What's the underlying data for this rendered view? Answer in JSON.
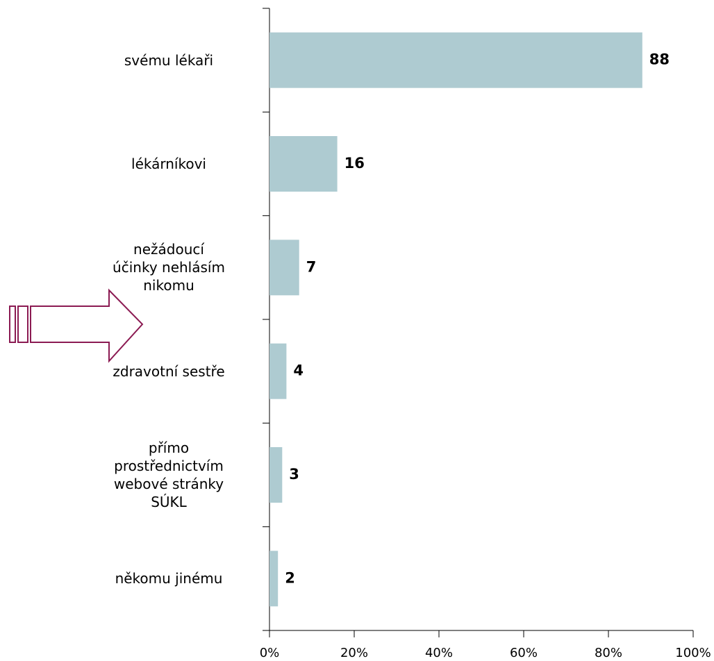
{
  "chart_data": {
    "type": "bar",
    "orientation": "horizontal",
    "categories": [
      "svému lékaři",
      "lékárníkovi",
      "nežádoucí\núčinky nehlásím\nnikomu",
      "zdravotní sestře",
      "přímo\nprostřednictvím\nwebové stránky\nSÚKL",
      "někomu jinému"
    ],
    "values": [
      88,
      16,
      7,
      4,
      3,
      2
    ],
    "color": "#aecbd1",
    "xlim": [
      0,
      100
    ],
    "xticks": [
      {
        "value": 0,
        "label": "0%"
      },
      {
        "value": 20,
        "label": "20%"
      },
      {
        "value": 40,
        "label": "40%"
      },
      {
        "value": 60,
        "label": "60%"
      },
      {
        "value": 80,
        "label": "80%"
      },
      {
        "value": 100,
        "label": "100%"
      }
    ],
    "grid": false
  }
}
